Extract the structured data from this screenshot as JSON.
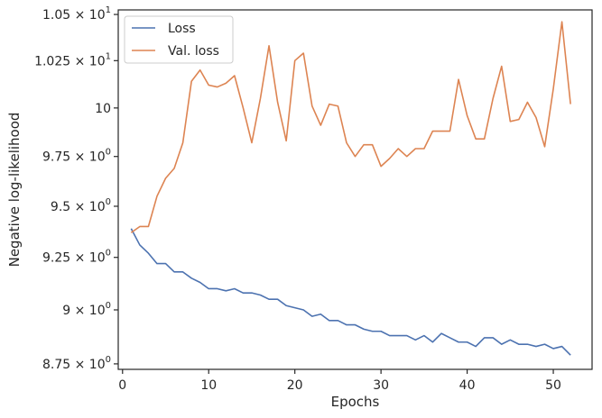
{
  "chart_data": {
    "type": "line",
    "xlabel": "Epochs",
    "ylabel": "Negative log-likelihood",
    "xlim": [
      -0.5,
      54.5
    ],
    "ylim": [
      8.725,
      10.525
    ],
    "y_scale": "log",
    "grid": false,
    "legend_position": "top-left",
    "x_ticks": [
      {
        "value": 0,
        "label": "0"
      },
      {
        "value": 10,
        "label": "10"
      },
      {
        "value": 20,
        "label": "20"
      },
      {
        "value": 30,
        "label": "30"
      },
      {
        "value": 40,
        "label": "40"
      },
      {
        "value": 50,
        "label": "50"
      }
    ],
    "y_ticks": [
      {
        "value": 8.75,
        "mant": "8.75",
        "exp": "0",
        "plain": ""
      },
      {
        "value": 9.0,
        "mant": "9",
        "exp": "0",
        "plain": ""
      },
      {
        "value": 9.25,
        "mant": "9.25",
        "exp": "0",
        "plain": ""
      },
      {
        "value": 9.5,
        "mant": "9.5",
        "exp": "0",
        "plain": ""
      },
      {
        "value": 9.75,
        "mant": "9.75",
        "exp": "0",
        "plain": ""
      },
      {
        "value": 10.0,
        "mant": "",
        "exp": "",
        "plain": "10"
      },
      {
        "value": 10.25,
        "mant": "1.025",
        "exp": "1",
        "plain": ""
      },
      {
        "value": 10.5,
        "mant": "1.05",
        "exp": "1",
        "plain": ""
      }
    ],
    "x": [
      1,
      2,
      3,
      4,
      5,
      6,
      7,
      8,
      9,
      10,
      11,
      12,
      13,
      14,
      15,
      16,
      17,
      18,
      19,
      20,
      21,
      22,
      23,
      24,
      25,
      26,
      27,
      28,
      29,
      30,
      31,
      32,
      33,
      34,
      35,
      36,
      37,
      38,
      39,
      40,
      41,
      42,
      43,
      44,
      45,
      46,
      47,
      48,
      49,
      50,
      51,
      52
    ],
    "series": [
      {
        "name": "Loss",
        "color": "#4c72b0",
        "values": [
          9.39,
          9.31,
          9.27,
          9.22,
          9.22,
          9.18,
          9.18,
          9.15,
          9.13,
          9.1,
          9.1,
          9.09,
          9.1,
          9.08,
          9.08,
          9.07,
          9.05,
          9.05,
          9.02,
          9.01,
          9.0,
          8.97,
          8.98,
          8.95,
          8.95,
          8.93,
          8.93,
          8.91,
          8.9,
          8.9,
          8.88,
          8.88,
          8.88,
          8.86,
          8.88,
          8.85,
          8.89,
          8.87,
          8.85,
          8.85,
          8.83,
          8.87,
          8.87,
          8.84,
          8.86,
          8.84,
          8.84,
          8.83,
          8.84,
          8.82,
          8.83,
          8.79
        ]
      },
      {
        "name": "Val. loss",
        "color": "#dd8452",
        "values": [
          9.37,
          9.4,
          9.4,
          9.55,
          9.64,
          9.69,
          9.82,
          10.14,
          10.2,
          10.12,
          10.11,
          10.13,
          10.17,
          10.0,
          9.82,
          10.05,
          10.33,
          10.03,
          9.83,
          10.25,
          10.29,
          10.01,
          9.91,
          10.02,
          10.01,
          9.82,
          9.75,
          9.81,
          9.81,
          9.7,
          9.74,
          9.79,
          9.75,
          9.79,
          9.79,
          9.88,
          9.88,
          9.88,
          10.15,
          9.96,
          9.84,
          9.84,
          10.05,
          10.22,
          9.93,
          9.94,
          10.03,
          9.95,
          9.8,
          10.1,
          10.46,
          10.02
        ]
      }
    ]
  }
}
